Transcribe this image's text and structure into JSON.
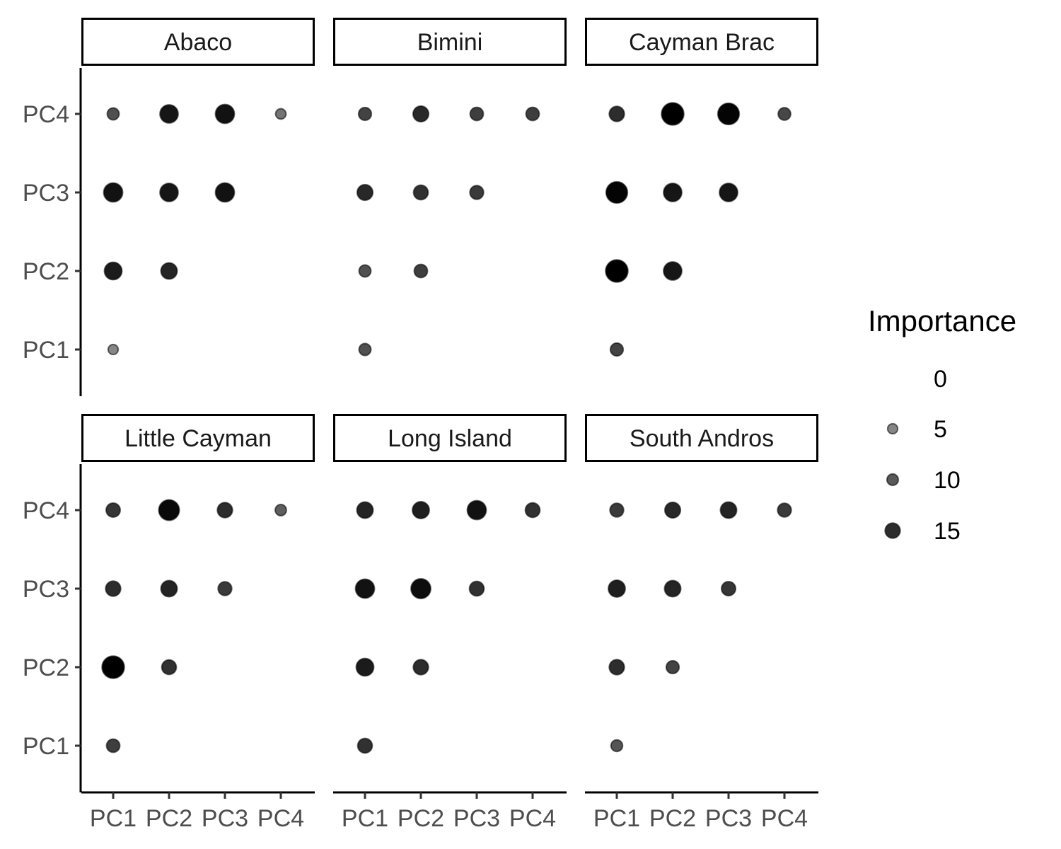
{
  "chart_data": {
    "type": "scatter",
    "subtype": "faceted bubble matrix (lower triangle)",
    "x_categories": [
      "PC1",
      "PC2",
      "PC3",
      "PC4"
    ],
    "y_categories": [
      "PC1",
      "PC2",
      "PC3",
      "PC4"
    ],
    "legend": {
      "title": "Importance",
      "placement": "right",
      "breaks": [
        0,
        5,
        10,
        15
      ],
      "labels": [
        "0",
        "5",
        "10",
        "15"
      ]
    },
    "panels": [
      {
        "title": "Abaco",
        "points": [
          {
            "x": "PC1",
            "y": "PC1",
            "importance": 5
          },
          {
            "x": "PC1",
            "y": "PC2",
            "importance": 17
          },
          {
            "x": "PC2",
            "y": "PC2",
            "importance": 16
          },
          {
            "x": "PC1",
            "y": "PC3",
            "importance": 18
          },
          {
            "x": "PC2",
            "y": "PC3",
            "importance": 17.5
          },
          {
            "x": "PC3",
            "y": "PC3",
            "importance": 18
          },
          {
            "x": "PC1",
            "y": "PC4",
            "importance": 11
          },
          {
            "x": "PC2",
            "y": "PC4",
            "importance": 17.5
          },
          {
            "x": "PC3",
            "y": "PC4",
            "importance": 18
          },
          {
            "x": "PC4",
            "y": "PC4",
            "importance": 7
          }
        ]
      },
      {
        "title": "Bimini",
        "points": [
          {
            "x": "PC1",
            "y": "PC1",
            "importance": 11
          },
          {
            "x": "PC1",
            "y": "PC2",
            "importance": 11
          },
          {
            "x": "PC2",
            "y": "PC2",
            "importance": 13
          },
          {
            "x": "PC1",
            "y": "PC3",
            "importance": 15.5
          },
          {
            "x": "PC2",
            "y": "PC3",
            "importance": 14.5
          },
          {
            "x": "PC3",
            "y": "PC3",
            "importance": 13.5
          },
          {
            "x": "PC1",
            "y": "PC4",
            "importance": 12.5
          },
          {
            "x": "PC2",
            "y": "PC4",
            "importance": 15.5
          },
          {
            "x": "PC3",
            "y": "PC4",
            "importance": 13
          },
          {
            "x": "PC4",
            "y": "PC4",
            "importance": 13
          }
        ]
      },
      {
        "title": "Cayman Brac",
        "points": [
          {
            "x": "PC1",
            "y": "PC1",
            "importance": 12.5
          },
          {
            "x": "PC1",
            "y": "PC2",
            "importance": 20
          },
          {
            "x": "PC2",
            "y": "PC2",
            "importance": 17.5
          },
          {
            "x": "PC1",
            "y": "PC3",
            "importance": 19.5
          },
          {
            "x": "PC2",
            "y": "PC3",
            "importance": 17.5
          },
          {
            "x": "PC3",
            "y": "PC3",
            "importance": 17.5
          },
          {
            "x": "PC1",
            "y": "PC4",
            "importance": 15
          },
          {
            "x": "PC2",
            "y": "PC4",
            "importance": 20
          },
          {
            "x": "PC3",
            "y": "PC4",
            "importance": 19.5
          },
          {
            "x": "PC4",
            "y": "PC4",
            "importance": 12
          }
        ]
      },
      {
        "title": "Little Cayman",
        "points": [
          {
            "x": "PC1",
            "y": "PC1",
            "importance": 13
          },
          {
            "x": "PC1",
            "y": "PC2",
            "importance": 20
          },
          {
            "x": "PC2",
            "y": "PC2",
            "importance": 14.5
          },
          {
            "x": "PC1",
            "y": "PC3",
            "importance": 15
          },
          {
            "x": "PC2",
            "y": "PC3",
            "importance": 16
          },
          {
            "x": "PC3",
            "y": "PC3",
            "importance": 13.5
          },
          {
            "x": "PC1",
            "y": "PC4",
            "importance": 14
          },
          {
            "x": "PC2",
            "y": "PC4",
            "importance": 19
          },
          {
            "x": "PC3",
            "y": "PC4",
            "importance": 15
          },
          {
            "x": "PC4",
            "y": "PC4",
            "importance": 9.5
          }
        ]
      },
      {
        "title": "Long Island",
        "points": [
          {
            "x": "PC1",
            "y": "PC1",
            "importance": 14.5
          },
          {
            "x": "PC1",
            "y": "PC2",
            "importance": 17
          },
          {
            "x": "PC2",
            "y": "PC2",
            "importance": 15
          },
          {
            "x": "PC1",
            "y": "PC3",
            "importance": 18
          },
          {
            "x": "PC2",
            "y": "PC3",
            "importance": 18.5
          },
          {
            "x": "PC3",
            "y": "PC3",
            "importance": 14.5
          },
          {
            "x": "PC1",
            "y": "PC4",
            "importance": 16
          },
          {
            "x": "PC2",
            "y": "PC4",
            "importance": 16.5
          },
          {
            "x": "PC3",
            "y": "PC4",
            "importance": 18
          },
          {
            "x": "PC4",
            "y": "PC4",
            "importance": 14.5
          }
        ]
      },
      {
        "title": "South Andros",
        "points": [
          {
            "x": "PC1",
            "y": "PC1",
            "importance": 10.5
          },
          {
            "x": "PC1",
            "y": "PC2",
            "importance": 15
          },
          {
            "x": "PC2",
            "y": "PC2",
            "importance": 12.5
          },
          {
            "x": "PC1",
            "y": "PC3",
            "importance": 16.5
          },
          {
            "x": "PC2",
            "y": "PC3",
            "importance": 16
          },
          {
            "x": "PC3",
            "y": "PC3",
            "importance": 14
          },
          {
            "x": "PC1",
            "y": "PC4",
            "importance": 13.5
          },
          {
            "x": "PC2",
            "y": "PC4",
            "importance": 15.5
          },
          {
            "x": "PC3",
            "y": "PC4",
            "importance": 16
          },
          {
            "x": "PC4",
            "y": "PC4",
            "importance": 13.5
          }
        ]
      }
    ]
  }
}
